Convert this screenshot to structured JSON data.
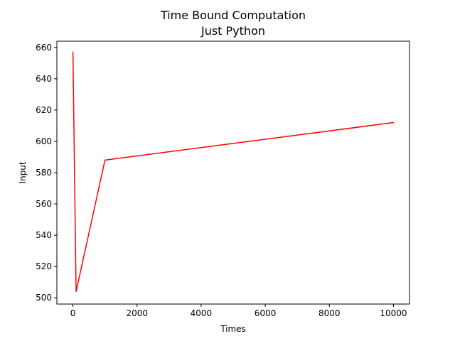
{
  "chart_data": {
    "type": "line",
    "title": "Time Bound Computation",
    "subtitle": "Just Python",
    "xlabel": "Times",
    "ylabel": "Input",
    "xlim": [
      -500,
      10500
    ],
    "ylim": [
      496,
      664
    ],
    "x_ticks": [
      0,
      2000,
      4000,
      6000,
      8000,
      10000
    ],
    "y_ticks": [
      500,
      520,
      540,
      560,
      580,
      600,
      620,
      640,
      660
    ],
    "grid": false,
    "series": [
      {
        "color": "#ff0000",
        "x": [
          1,
          100,
          1000,
          10000
        ],
        "y": [
          657,
          504,
          588,
          612
        ]
      }
    ]
  }
}
